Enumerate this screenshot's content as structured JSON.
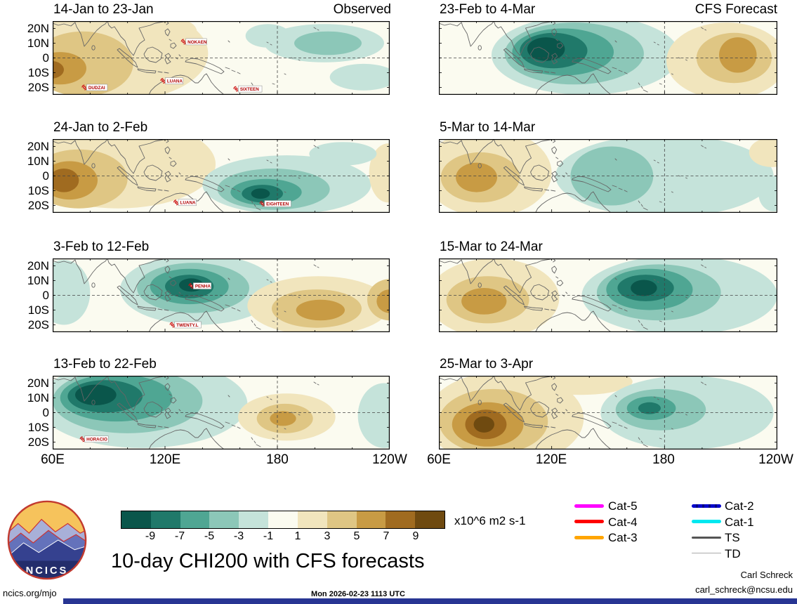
{
  "chart_data": {
    "type": "heatmap",
    "title": "10-day CHI200 with CFS forecasts",
    "variable": "CHI200 velocity potential anomaly",
    "units_label": "x10^6 m2 s-1",
    "column_labels": {
      "left": "Observed",
      "right": "CFS Forecast"
    },
    "levels": [
      -9,
      -7,
      -5,
      -3,
      -1,
      1,
      3,
      5,
      7,
      9
    ],
    "colorbar_tick_labels": [
      "-9",
      "-7",
      "-5",
      "-3",
      "-1",
      "1",
      "3",
      "5",
      "7",
      "9"
    ],
    "colors": [
      "#0a564b",
      "#20796a",
      "#4fa693",
      "#8cc7b8",
      "#c5e3da",
      "#fbfbf0",
      "#f1e5bd",
      "#dfc684",
      "#c89b44",
      "#a06b20",
      "#6f4a10"
    ],
    "storm_color": "#cc1111",
    "lon_range": [
      60,
      240
    ],
    "lat_range": [
      -25,
      25
    ],
    "x_tick_labels": [
      "60E",
      "120E",
      "180",
      "120W"
    ],
    "x_tick_lons": [
      60,
      120,
      180,
      240
    ],
    "y_tick_labels": [
      "20N",
      "10N",
      "0",
      "10S",
      "20S"
    ],
    "y_tick_lats": [
      20,
      10,
      0,
      -10,
      -20
    ],
    "grid": {
      "equator_dashed": true,
      "dateline_dashed": true,
      "legend_position": "bottom"
    },
    "panels": [
      {
        "title": "14-Jan to 23-Jan",
        "column": "Observed",
        "blobs": [
          [
            95,
            3,
            48,
            32,
            6
          ],
          [
            112,
            18,
            25,
            12,
            6
          ],
          [
            76,
            -4,
            27,
            22,
            7
          ],
          [
            64,
            -7,
            14,
            11,
            8
          ],
          [
            59,
            -8,
            7,
            6,
            9
          ],
          [
            205,
            10,
            32,
            13,
            4
          ],
          [
            207,
            10,
            18,
            8,
            3
          ],
          [
            226,
            -13,
            18,
            9,
            4
          ],
          [
            175,
            15,
            12,
            8,
            4
          ]
        ],
        "storms": [
          {
            "name": "NOKAEN",
            "lon": 130,
            "lat": 11
          },
          {
            "name": "DUDZAI",
            "lon": 77,
            "lat": -20
          },
          {
            "name": "LUANA",
            "lon": 119,
            "lat": -15.5
          },
          {
            "name": "SIXTEEN",
            "lon": 158,
            "lat": -21
          }
        ]
      },
      {
        "title": "24-Jan to 2-Feb",
        "column": "Observed",
        "blobs": [
          [
            95,
            8,
            52,
            30,
            6
          ],
          [
            74,
            -2,
            26,
            20,
            7
          ],
          [
            69,
            -3,
            15,
            13,
            8
          ],
          [
            66,
            -3,
            8,
            8,
            9
          ],
          [
            185,
            -6,
            45,
            20,
            4
          ],
          [
            178,
            -9,
            30,
            14,
            3
          ],
          [
            174,
            -11,
            19,
            9,
            2
          ],
          [
            172,
            -12,
            11,
            6,
            1
          ],
          [
            171,
            -12,
            5,
            3.5,
            0
          ],
          [
            239,
            2,
            10,
            20,
            6
          ],
          [
            215,
            15,
            18,
            8,
            4
          ]
        ],
        "storms": [
          {
            "name": "LUANA",
            "lon": 126,
            "lat": -18
          },
          {
            "name": "EIGHTEEN",
            "lon": 172,
            "lat": -18.8
          }
        ]
      },
      {
        "title": "3-Feb to 12-Feb",
        "column": "Observed",
        "blobs": [
          [
            66,
            2,
            14,
            22,
            4
          ],
          [
            138,
            4,
            42,
            24,
            4
          ],
          [
            135,
            5,
            30,
            17,
            3
          ],
          [
            133,
            6,
            21,
            12,
            2
          ],
          [
            133,
            6,
            13,
            8,
            1
          ],
          [
            134,
            7,
            6.5,
            4.5,
            0
          ],
          [
            202,
            -7,
            38,
            20,
            6
          ],
          [
            201,
            -9,
            24,
            13,
            7
          ],
          [
            240,
            -3,
            12,
            14,
            7
          ],
          [
            203,
            -10,
            13,
            7,
            8
          ],
          [
            240,
            -4,
            7,
            8,
            8
          ]
        ],
        "storms": [
          {
            "name": "PENHA",
            "lon": 134,
            "lat": 6.4
          },
          {
            "name": "TWENTY.L",
            "lon": 124,
            "lat": -20
          }
        ]
      },
      {
        "title": "13-Feb to 22-Feb",
        "column": "Observed",
        "blobs": [
          [
            108,
            6,
            56,
            30,
            4
          ],
          [
            100,
            8,
            40,
            22,
            3
          ],
          [
            94,
            10,
            30,
            16,
            2
          ],
          [
            88,
            11,
            20,
            11,
            1
          ],
          [
            83,
            12,
            11,
            7,
            0
          ],
          [
            237,
            -2,
            14,
            22,
            4
          ],
          [
            185,
            -3,
            26,
            16,
            6
          ],
          [
            184,
            -4,
            15,
            10,
            7
          ],
          [
            183,
            -4,
            7,
            5,
            8
          ]
        ],
        "storms": [
          {
            "name": "HORACIO",
            "lon": 76,
            "lat": -18
          }
        ]
      },
      {
        "title": "23-Feb to 4-Mar",
        "column": "CFS Forecast",
        "blobs": [
          [
            138,
            2,
            50,
            27,
            4
          ],
          [
            132,
            3,
            37,
            21,
            3
          ],
          [
            126,
            4,
            27,
            16,
            2
          ],
          [
            121,
            5,
            18,
            12,
            1
          ],
          [
            117,
            6,
            10,
            8,
            0
          ],
          [
            213,
            -2,
            32,
            26,
            6
          ],
          [
            217,
            0,
            20,
            17,
            7
          ],
          [
            219,
            2,
            10,
            12,
            8
          ]
        ],
        "storms": []
      },
      {
        "title": "5-Mar to 14-Mar",
        "column": "CFS Forecast",
        "blobs": [
          [
            86,
            2,
            34,
            30,
            6
          ],
          [
            82,
            -1,
            21,
            17,
            7
          ],
          [
            80,
            -1,
            11,
            10,
            8
          ],
          [
            180,
            0,
            58,
            28,
            4
          ],
          [
            152,
            0,
            22,
            20,
            3
          ],
          [
            237,
            16,
            12,
            10,
            6
          ],
          [
            238,
            -12,
            8,
            12,
            4
          ]
        ],
        "storms": []
      },
      {
        "title": "15-Mar to 24-Mar",
        "column": "CFS Forecast",
        "blobs": [
          [
            89,
            -2,
            35,
            27,
            6
          ],
          [
            86,
            -3,
            22,
            16,
            7
          ],
          [
            84,
            -4,
            12,
            9,
            8
          ],
          [
            188,
            0,
            52,
            27,
            4
          ],
          [
            177,
            2,
            33,
            19,
            3
          ],
          [
            172,
            4,
            23,
            14,
            2
          ],
          [
            170,
            5,
            15,
            9,
            1
          ],
          [
            169,
            5,
            7,
            5.5,
            0
          ]
        ],
        "storms": []
      },
      {
        "title": "25-Mar to 3-Apr",
        "column": "CFS Forecast",
        "blobs": [
          [
            95,
            -4,
            42,
            32,
            6
          ],
          [
            135,
            21,
            28,
            9,
            6
          ],
          [
            89,
            -6,
            29,
            22,
            7
          ],
          [
            86,
            -8,
            19,
            15,
            8
          ],
          [
            85,
            -8,
            11,
            10,
            9
          ],
          [
            84,
            -8,
            5.5,
            5.5,
            10
          ],
          [
            192,
            0,
            46,
            25,
            4
          ],
          [
            178,
            2,
            24,
            14,
            3
          ],
          [
            173,
            3,
            13,
            8,
            2
          ],
          [
            172,
            3,
            6,
            4,
            1
          ]
        ],
        "storms": []
      }
    ]
  },
  "legend": {
    "columns": [
      [
        {
          "label": "Cat-5",
          "color": "#ff00ff",
          "height": 5
        },
        {
          "label": "Cat-4",
          "color": "#ff0000",
          "height": 5
        },
        {
          "label": "Cat-3",
          "color": "#ffa500",
          "height": 5
        }
      ],
      [
        {
          "label": "Cat-2",
          "color": "#0000cc",
          "height": 5,
          "dashed": true
        },
        {
          "label": "Cat-1",
          "color": "#00e8f0",
          "height": 5
        },
        {
          "label": "TS",
          "color": "#555555",
          "height": 3
        },
        {
          "label": "TD",
          "color": "#aaaaaa",
          "height": 1.6
        }
      ]
    ]
  },
  "footer": {
    "site": "ncics.org/mjo",
    "timestamp": "Mon 2026-02-23 1113 UTC",
    "credit_name": "Carl Schreck",
    "credit_email": "carl_schreck@ncsu.edu",
    "logo_text": "NCICS"
  }
}
